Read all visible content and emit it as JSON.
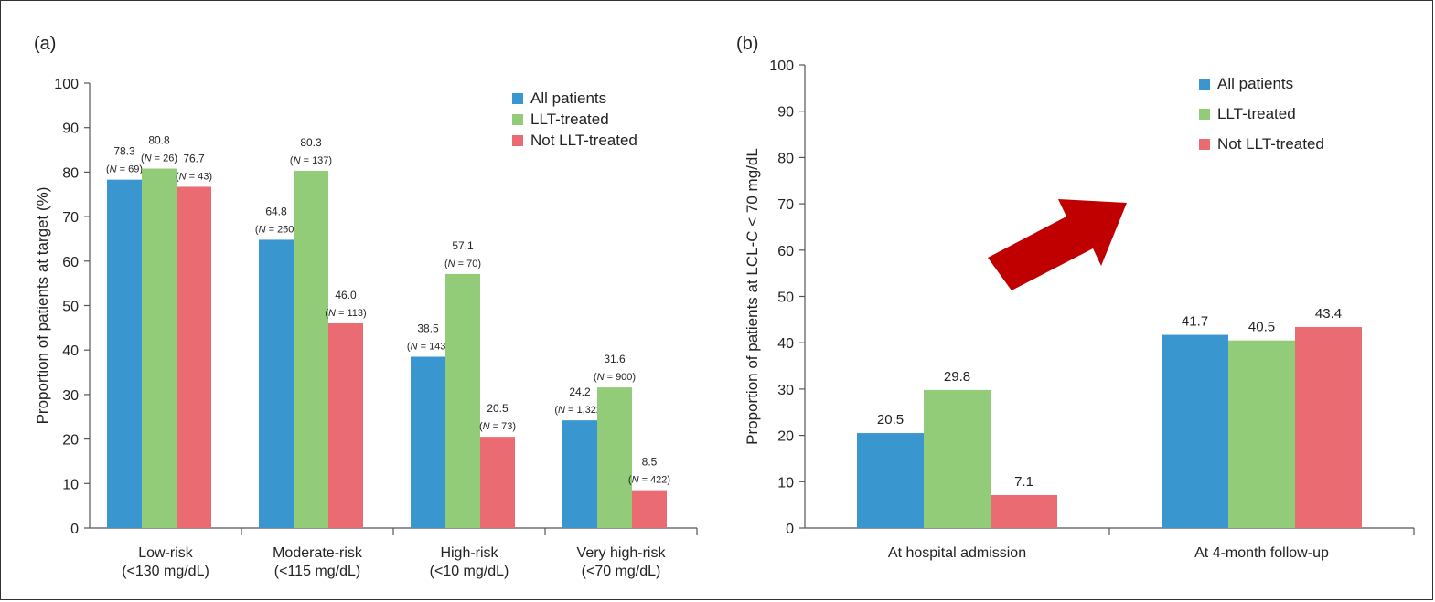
{
  "chart_data": [
    {
      "panel_label": "(a)",
      "type": "bar",
      "categories": [
        [
          "Low-risk",
          "(<130 mg/dL)"
        ],
        [
          "Moderate-risk",
          "(<115 mg/dL)"
        ],
        [
          "High-risk",
          "(<10 mg/dL)"
        ],
        [
          "Very high-risk",
          "(<70 mg/dL)"
        ]
      ],
      "ylabel": "Proportion of patients at target (%)",
      "ylim": [
        0,
        100
      ],
      "yticks": [
        0,
        10,
        20,
        30,
        40,
        50,
        60,
        70,
        80,
        90,
        100
      ],
      "grid": false,
      "legend_position": "top-right",
      "series": [
        {
          "name": "All patients",
          "color": "#3a96cf",
          "values": [
            78.3,
            64.8,
            38.5,
            24.2
          ],
          "value_labels": [
            "78.3",
            "64.8",
            "38.5",
            "24.2"
          ],
          "n_labels": [
            "(N = 69)",
            "(N = 250)",
            "(N = 143)",
            "(N = 1,322)"
          ]
        },
        {
          "name": "LLT-treated",
          "color": "#93cc78",
          "values": [
            80.8,
            80.3,
            57.1,
            31.6
          ],
          "value_labels": [
            "80.8",
            "80.3",
            "57.1",
            "31.6"
          ],
          "n_labels": [
            "(N = 26)",
            "(N = 137)",
            "(N = 70)",
            "(N = 900)"
          ]
        },
        {
          "name": "Not LLT-treated",
          "color": "#ea6b72",
          "values": [
            76.7,
            46.0,
            20.5,
            8.5
          ],
          "value_labels": [
            "76.7",
            "46.0",
            "20.5",
            "8.5"
          ],
          "n_labels": [
            "(N = 43)",
            "(N = 113)",
            "(N = 73)",
            "(N = 422)"
          ]
        }
      ]
    },
    {
      "panel_label": "(b)",
      "type": "bar",
      "categories": [
        [
          "At hospital admission"
        ],
        [
          "At 4-month follow-up"
        ]
      ],
      "ylabel": "Proportion of patients at LCL-C < 70 mg/dL",
      "ylim": [
        0,
        100
      ],
      "yticks": [
        0,
        10,
        20,
        30,
        40,
        50,
        60,
        70,
        80,
        90,
        100
      ],
      "grid": false,
      "legend_position": "top-right",
      "annotation": "red-arrow-up-right",
      "series": [
        {
          "name": "All patients",
          "color": "#3a96cf",
          "values": [
            20.5,
            41.7
          ],
          "value_labels": [
            "20.5",
            "41.7"
          ]
        },
        {
          "name": "LLT-treated",
          "color": "#93cc78",
          "values": [
            29.8,
            40.5
          ],
          "value_labels": [
            "29.8",
            "40.5"
          ]
        },
        {
          "name": "Not LLT-treated",
          "color": "#ea6b72",
          "values": [
            7.1,
            43.4
          ],
          "value_labels": [
            "7.1",
            "43.4"
          ]
        }
      ]
    }
  ],
  "arrow_color": "#c00000"
}
